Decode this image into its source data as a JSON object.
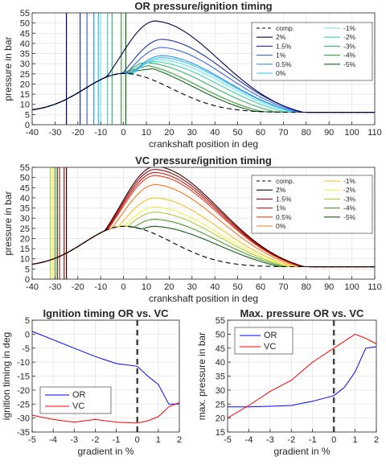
{
  "chart_data": [
    {
      "id": "or",
      "type": "line",
      "title": "OR pressure/ignition timing",
      "xlabel": "crankshaft position in deg",
      "ylabel": "pressure in bar",
      "xlim": [
        -40,
        110
      ],
      "ylim": [
        0,
        55
      ],
      "xticks": [
        -40,
        -30,
        -20,
        -10,
        0,
        10,
        20,
        30,
        40,
        50,
        60,
        70,
        80,
        90,
        100,
        110
      ],
      "yticks": [
        0,
        5,
        10,
        15,
        20,
        25,
        30,
        35,
        40,
        45,
        50,
        55
      ],
      "grid": true,
      "legend_position": "top-right",
      "compression": {
        "name": "comp.",
        "color": "#000000",
        "dash": "6,4",
        "peak": 25.2,
        "base": 6.1,
        "peak_at": 0
      },
      "series": [
        {
          "name": "2%",
          "color": "#000050",
          "ignition": -25,
          "peak": 45.0,
          "peak_at": 14
        },
        {
          "name": "1.5%",
          "color": "#1f2f9e",
          "ignition": -19,
          "peak": 36.0,
          "peak_at": 17
        },
        {
          "name": "1%",
          "color": "#3b66e0",
          "ignition": -16,
          "peak": 32.0,
          "peak_at": 17
        },
        {
          "name": "0.5%",
          "color": "#2f92ea",
          "ignition": -13,
          "peak": 28.0,
          "peak_at": 17
        },
        {
          "name": "0%",
          "color": "#33bff0",
          "ignition": -11,
          "peak": 27.0,
          "peak_at": 17
        },
        {
          "name": "-1%",
          "color": "#6fe6e6",
          "ignition": -10,
          "peak": 26.0,
          "peak_at": 16
        },
        {
          "name": "-2%",
          "color": "#3ed3b0",
          "ignition": -7,
          "peak": 25.0,
          "peak_at": 14
        },
        {
          "name": "-3%",
          "color": "#38b36a",
          "ignition": -5,
          "peak": 24.5,
          "peak_at": 10
        },
        {
          "name": "-4%",
          "color": "#3f9a3c",
          "ignition": -1,
          "peak": 24.0,
          "peak_at": 5
        },
        {
          "name": "-5%",
          "color": "#0d6b17",
          "ignition": 1,
          "peak": 24.0,
          "peak_at": 2
        }
      ]
    },
    {
      "id": "vc",
      "type": "line",
      "title": "VC pressure/ignition timing",
      "xlabel": "crankshaft position in deg",
      "ylabel": "pressure in bar",
      "xlim": [
        -40,
        110
      ],
      "ylim": [
        0,
        55
      ],
      "xticks": [
        -40,
        -30,
        -20,
        -10,
        0,
        10,
        20,
        30,
        40,
        50,
        60,
        70,
        80,
        90,
        100,
        110
      ],
      "yticks": [
        0,
        5,
        10,
        15,
        20,
        25,
        30,
        35,
        40,
        45,
        50,
        55
      ],
      "grid": true,
      "legend_position": "top-right",
      "compression": {
        "name": "comp.",
        "color": "#000000",
        "dash": "6,4",
        "peak": 26.0,
        "base": 6.1,
        "peak_at": 0
      },
      "series": [
        {
          "name": "2%",
          "color": "#3a0000",
          "ignition": -25,
          "peak": 49.5,
          "peak_at": 14
        },
        {
          "name": "1.5%",
          "color": "#8b1010",
          "ignition": -26,
          "peak": 48.0,
          "peak_at": 14
        },
        {
          "name": "1%",
          "color": "#c61a1a",
          "ignition": -28,
          "peak": 46.5,
          "peak_at": 14
        },
        {
          "name": "0.5%",
          "color": "#ee3a1a",
          "ignition": -29,
          "peak": 45.0,
          "peak_at": 14
        },
        {
          "name": "0%",
          "color": "#f57a1e",
          "ignition": -31,
          "peak": 40.5,
          "peak_at": 14
        },
        {
          "name": "-1%",
          "color": "#f4c21c",
          "ignition": -31,
          "peak": 34.0,
          "peak_at": 14
        },
        {
          "name": "-2%",
          "color": "#f3f04a",
          "ignition": -31,
          "peak": 29.5,
          "peak_at": 14
        },
        {
          "name": "-3%",
          "color": "#a9cc3c",
          "ignition": -32,
          "peak": 27.0,
          "peak_at": 14
        },
        {
          "name": "-4%",
          "color": "#4e9a2c",
          "ignition": -30,
          "peak": 23.5,
          "peak_at": 14
        },
        {
          "name": "-5%",
          "color": "#155c1c",
          "ignition": -29,
          "peak": 20.0,
          "peak_at": 14
        }
      ]
    },
    {
      "id": "ign",
      "type": "line",
      "title": "Ignition timing OR vs. VC",
      "xlabel": "gradient in %",
      "ylabel": "ignition timing in deg",
      "xlim": [
        -5,
        2
      ],
      "ylim": [
        -35,
        5
      ],
      "xticks": [
        -5,
        -4,
        -3,
        -2,
        -1,
        0,
        1,
        2
      ],
      "yticks": [
        -35,
        -30,
        -25,
        -20,
        -15,
        -10,
        -5,
        0,
        5
      ],
      "grid": true,
      "legend_position": "bottom-left",
      "vline": 0,
      "series": [
        {
          "name": "OR",
          "color": "#0000ff",
          "x": [
            -5,
            -4,
            -3,
            -2,
            -1,
            0,
            0.5,
            1,
            1.5,
            2
          ],
          "y": [
            1,
            -2,
            -5,
            -8,
            -10.5,
            -11.5,
            -15,
            -18,
            -25,
            -25
          ]
        },
        {
          "name": "VC",
          "color": "#ff0000",
          "x": [
            -5,
            -4,
            -3,
            -2,
            -1,
            0,
            0.5,
            1,
            1.5,
            2
          ],
          "y": [
            -29,
            -30.5,
            -31.5,
            -30.5,
            -31.5,
            -31.8,
            -31,
            -29.5,
            -26,
            -24.5
          ]
        }
      ]
    },
    {
      "id": "maxp",
      "type": "line",
      "title": "Max. pressure OR vs. VC",
      "xlabel": "gradient in %",
      "ylabel": "max. pressure in bar",
      "xlim": [
        -5,
        2
      ],
      "ylim": [
        15,
        55
      ],
      "xticks": [
        -5,
        -4,
        -3,
        -2,
        -1,
        0,
        1,
        2
      ],
      "yticks": [
        15,
        20,
        25,
        30,
        35,
        40,
        45,
        50,
        55
      ],
      "grid": true,
      "legend_position": "top-left",
      "vline": 0,
      "series": [
        {
          "name": "OR",
          "color": "#0000ff",
          "x": [
            -5,
            -4,
            -3,
            -2,
            -1,
            0,
            0.5,
            1,
            1.5,
            2
          ],
          "y": [
            24,
            24,
            24.2,
            24.5,
            26,
            28,
            31,
            36.5,
            45,
            45.5
          ]
        },
        {
          "name": "VC",
          "color": "#ff0000",
          "x": [
            -5,
            -4,
            -3,
            -2,
            -1,
            0,
            0.5,
            1,
            1.5,
            2
          ],
          "y": [
            20,
            24.5,
            29.5,
            33.5,
            40,
            45,
            47.5,
            50,
            48.5,
            46.5
          ]
        }
      ]
    }
  ]
}
